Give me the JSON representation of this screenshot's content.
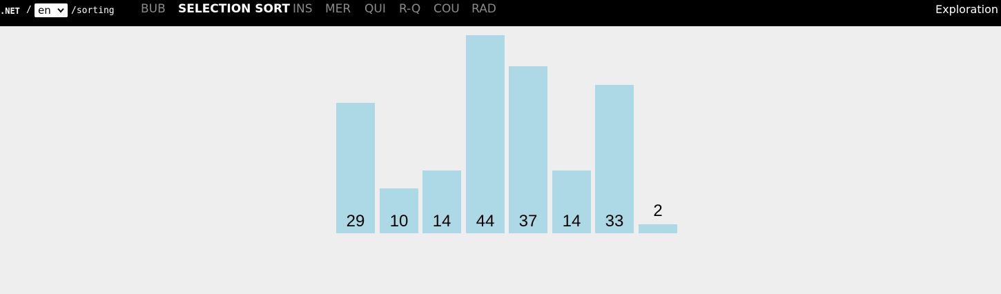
{
  "header": {
    "brand": ".NET",
    "separator": "/",
    "language": "en",
    "path": "/sorting",
    "nav": [
      {
        "label": "BUB",
        "active": false
      },
      {
        "label": "SELECTION SORT",
        "active": true
      },
      {
        "label": "INS",
        "active": false
      },
      {
        "label": "MER",
        "active": false
      },
      {
        "label": "QUI",
        "active": false
      },
      {
        "label": "R-Q",
        "active": false
      },
      {
        "label": "COU",
        "active": false
      },
      {
        "label": "RAD",
        "active": false
      }
    ],
    "exploration": "Exploration"
  },
  "colors": {
    "bar": "#add8e6",
    "background": "#eeeeee",
    "topbar": "#000000",
    "nav_inactive": "#8a8a8a"
  },
  "chart_data": {
    "type": "bar",
    "values": [
      29,
      10,
      14,
      44,
      37,
      14,
      33,
      2
    ]
  }
}
